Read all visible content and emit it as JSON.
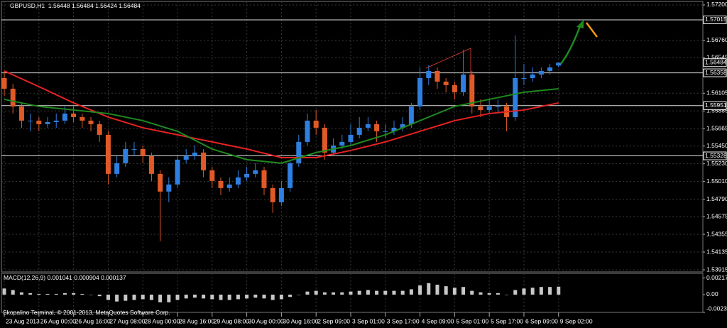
{
  "chart_data": {
    "type": "candlestick",
    "symbol": "GBPUSD,H1",
    "footer": "Skopalino Terminal, © 2001-2013, MetaQuotes Software Corp.",
    "up_color": "#2f7fe0",
    "down_color": "#e05a28",
    "open": [
      1.56293,
      1.56161,
      1.55941,
      1.55765,
      1.55765,
      1.55721,
      1.55747,
      1.55765,
      1.55853,
      1.55809,
      1.55765,
      1.55721,
      1.55589,
      1.55105,
      1.55237,
      1.55413,
      1.55413,
      1.55325,
      1.55105,
      1.54885,
      1.54973,
      1.55281,
      1.55325,
      1.55369,
      1.55149,
      1.55017,
      1.54929,
      1.54973,
      1.55061,
      1.55105,
      1.55149,
      1.54929,
      1.54753,
      1.54929,
      1.55237,
      1.55501,
      1.55765,
      1.55677,
      1.55369,
      1.55457,
      1.55501,
      1.55589,
      1.55677,
      1.55721,
      1.55633,
      1.55633,
      1.55677,
      1.55721,
      1.55941,
      1.56293,
      1.56381,
      1.56249,
      1.56205,
      1.56117,
      1.56337,
      1.55941,
      1.55897,
      1.55941,
      1.55941,
      1.55809,
      1.56293,
      1.56293,
      1.56337,
      1.56381,
      1.56448
    ],
    "high": [
      1.56381,
      1.56223,
      1.55985,
      1.55853,
      1.55809,
      1.55809,
      1.55853,
      1.55941,
      1.55941,
      1.55853,
      1.55809,
      1.55765,
      1.55633,
      1.55325,
      1.55501,
      1.55501,
      1.55457,
      1.55369,
      1.55149,
      1.55061,
      1.55325,
      1.55413,
      1.55457,
      1.55413,
      1.55193,
      1.55061,
      1.55061,
      1.55149,
      1.55193,
      1.55237,
      1.55193,
      1.54973,
      1.55017,
      1.55281,
      1.55589,
      1.55853,
      1.55897,
      1.55721,
      1.55545,
      1.55589,
      1.55721,
      1.55809,
      1.55809,
      1.55765,
      1.55721,
      1.55765,
      1.55809,
      1.55985,
      1.56425,
      1.56451,
      1.56425,
      1.56293,
      1.56249,
      1.56645,
      1.56381,
      1.56029,
      1.56029,
      1.56029,
      1.55985,
      1.56821,
      1.56469,
      1.56425,
      1.56425,
      1.56469,
      1.56484
    ],
    "low": [
      1.56073,
      1.55853,
      1.55677,
      1.55633,
      1.55633,
      1.55677,
      1.55677,
      1.55721,
      1.55747,
      1.55677,
      1.55633,
      1.55501,
      1.54973,
      1.55061,
      1.55193,
      1.55325,
      1.55237,
      1.55017,
      1.54269,
      1.54753,
      1.54929,
      1.55237,
      1.55281,
      1.55061,
      1.54929,
      1.54841,
      1.54885,
      1.54929,
      1.55017,
      1.55061,
      1.54841,
      1.54621,
      1.54709,
      1.54885,
      1.55193,
      1.55457,
      1.55589,
      1.55281,
      1.55325,
      1.55413,
      1.55457,
      1.55545,
      1.55633,
      1.55501,
      1.55545,
      1.55589,
      1.55633,
      1.55677,
      1.55897,
      1.56205,
      1.56161,
      1.56117,
      1.56029,
      1.56073,
      1.55853,
      1.55809,
      1.55853,
      1.55853,
      1.55633,
      1.55765,
      1.56205,
      1.56249,
      1.56293,
      1.56337,
      1.56424
    ],
    "close": [
      1.56161,
      1.55941,
      1.55765,
      1.55765,
      1.55721,
      1.55747,
      1.55765,
      1.55853,
      1.55809,
      1.55765,
      1.55721,
      1.55589,
      1.55105,
      1.55237,
      1.55413,
      1.55413,
      1.55325,
      1.55105,
      1.54885,
      1.54973,
      1.55281,
      1.55325,
      1.55369,
      1.55149,
      1.55017,
      1.54929,
      1.54973,
      1.55061,
      1.55105,
      1.55149,
      1.54929,
      1.54753,
      1.54929,
      1.55237,
      1.55501,
      1.55765,
      1.55677,
      1.55369,
      1.55457,
      1.55501,
      1.55589,
      1.55677,
      1.55721,
      1.55633,
      1.55633,
      1.55677,
      1.55721,
      1.55941,
      1.56293,
      1.56381,
      1.56249,
      1.56205,
      1.56117,
      1.56337,
      1.55941,
      1.55897,
      1.55941,
      1.55941,
      1.55809,
      1.56293,
      1.56293,
      1.56337,
      1.56381,
      1.56425,
      1.56484
    ],
    "series": [
      {
        "color": "#e52222",
        "x": [
          0,
          4,
          8,
          12,
          16,
          20,
          24,
          28,
          32,
          36,
          40,
          44,
          48,
          52,
          56,
          60,
          64
        ],
        "values": [
          1.56381,
          1.56187,
          1.55985,
          1.55809,
          1.55677,
          1.55589,
          1.55501,
          1.55413,
          1.55307,
          1.55307,
          1.55395,
          1.55501,
          1.55633,
          1.55765,
          1.55853,
          1.55897,
          1.55985
        ]
      },
      {
        "color": "#1f8a1f",
        "x": [
          0,
          4,
          8,
          12,
          16,
          20,
          24,
          28,
          32,
          36,
          40,
          44,
          48,
          52,
          56,
          60,
          64
        ],
        "values": [
          1.56029,
          1.55941,
          1.55897,
          1.55853,
          1.55765,
          1.55633,
          1.55413,
          1.55281,
          1.55237,
          1.55369,
          1.55457,
          1.55589,
          1.55765,
          1.55941,
          1.56029,
          1.56117,
          1.56161
        ]
      }
    ],
    "levels": [
      1.57015,
      1.56358,
      1.55951,
      1.55328
    ],
    "xlim": [
      -0.33,
      80.66
    ],
    "ylim": [
      1.5388,
      1.57226
    ],
    "yticks": [
      {
        "value": 1.572,
        "label": "1.57200"
      },
      {
        "value": 1.5676,
        "label": "1.56760"
      },
      1.56545,
      1.56105,
      1.55885,
      1.55665,
      {
        "value": 1.5545,
        "label": "1.55450"
      },
      {
        "value": 1.5523,
        "label": "1.55230"
      },
      {
        "value": 1.5501,
        "label": "1.55010"
      },
      {
        "value": 1.5479,
        "label": "1.54790"
      },
      1.54575,
      1.54355,
      1.54135,
      1.53915
    ],
    "xticks": [
      {
        "value": 0,
        "label": "23 Aug 2013"
      },
      {
        "value": 4,
        "label": "26 Aug 00:00"
      },
      {
        "value": 8,
        "label": "26 Aug 16:00"
      },
      {
        "value": 12,
        "label": "27 Aug 08:00"
      },
      {
        "value": 16,
        "label": "28 Aug 00:00"
      },
      {
        "value": 20,
        "label": "28 Aug 16:00"
      },
      {
        "value": 24,
        "label": "29 Aug 08:00"
      },
      {
        "value": 28,
        "label": "30 Aug 00:00"
      },
      {
        "value": 32,
        "label": "30 Aug 16:00"
      },
      {
        "value": 36,
        "label": "2 Sep 09:00"
      },
      {
        "value": 40,
        "label": "3 Sep 01:00"
      },
      {
        "value": 44,
        "label": "3 Sep 17:00"
      },
      {
        "value": 48,
        "label": "4 Sep 09:00"
      },
      {
        "value": 52,
        "label": "5 Sep 01:00"
      },
      {
        "value": 56,
        "label": "5 Sep 17:00"
      },
      {
        "value": 60,
        "label": "6 Sep 09:00"
      },
      {
        "value": 64,
        "label": "9 Sep 02:00"
      }
    ],
    "grid": true,
    "macd": {
      "type": "bar",
      "title": "MACD(12,26,9)",
      "color": "#c8c8c8",
      "values": [
        0.0008,
        0.0006,
        0.0003,
        0.0002,
        0.0001,
        0.0001,
        0.0001,
        0.0002,
        0.0002,
        0.0001,
        0,
        -0.0002,
        -0.0007,
        -0.0009,
        -0.0008,
        -0.0007,
        -0.0006,
        -0.0007,
        -0.001,
        -0.001,
        -0.0007,
        -0.0005,
        -0.0004,
        -0.0005,
        -0.0006,
        -0.0007,
        -0.0007,
        -0.0006,
        -0.0005,
        -0.0004,
        -0.0005,
        -0.0007,
        -0.0006,
        -0.0003,
        0,
        0.0004,
        0.0005,
        0.0003,
        0.0003,
        0.0003,
        0.0004,
        0.0005,
        0.0006,
        0.0005,
        0.0005,
        0.0005,
        0.0005,
        0.0007,
        0.0012,
        0.0015,
        0.0013,
        0.0011,
        0.0009,
        0.001,
        0.0005,
        0.0003,
        0.0002,
        0.0002,
        0,
        0.0006,
        0.0008,
        0.0009,
        0.001,
        0.001,
        0.001041
      ],
      "signal_value": 0.000904,
      "osma_value": 0.000137,
      "ylim": [
        -0.00232,
        0.00269
      ],
      "yticks": [
        0.00217,
        {
          "value": 0,
          "label": "0.00"
        },
        -0.00232
      ]
    }
  }
}
